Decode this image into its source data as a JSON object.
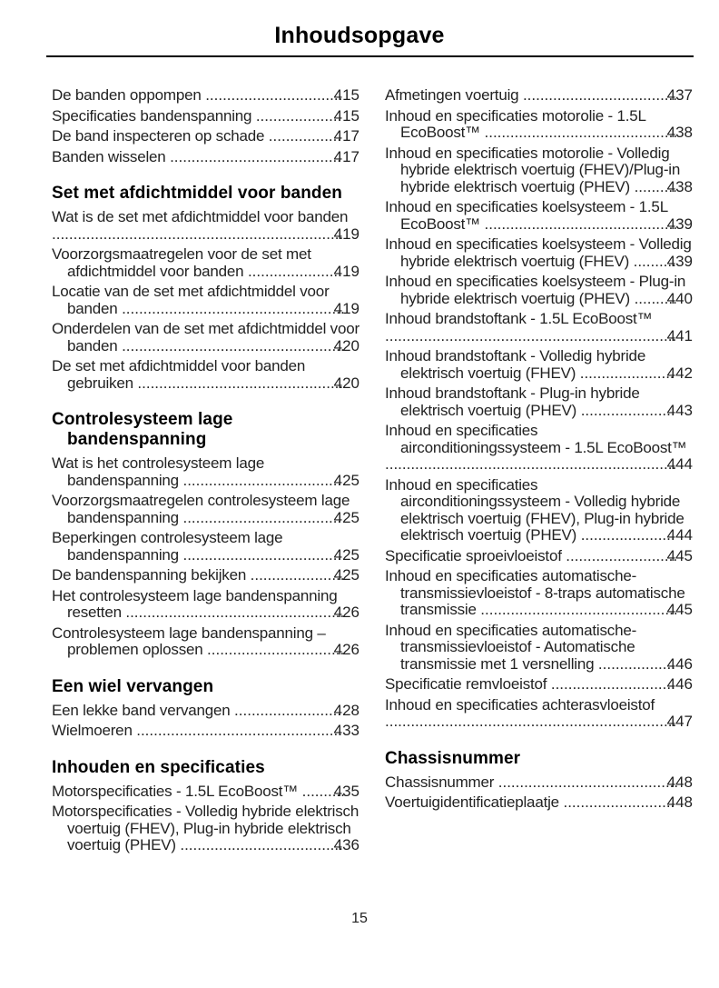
{
  "header": {
    "title": "Inhoudsopgave"
  },
  "footer": {
    "page_number": "15"
  },
  "colors": {
    "background": "#ffffff",
    "text": "#222222",
    "heading": "#000000",
    "rule": "#000000"
  },
  "columns": [
    {
      "blocks": [
        {
          "heading": null,
          "items": [
            {
              "label": "De banden oppompen",
              "page": "415"
            },
            {
              "label": "Specificaties bandenspanning",
              "page": "415"
            },
            {
              "label": "De band inspecteren op schade",
              "page": "417"
            },
            {
              "label": "Banden wisselen",
              "page": "417"
            }
          ]
        },
        {
          "heading": "Set met afdichtmiddel voor banden",
          "items": [
            {
              "label": "Wat is de set met afdichtmiddel voor banden",
              "page": "419"
            },
            {
              "label": "Voorzorgsmaatregelen voor de set met afdichtmiddel voor banden",
              "page": "419"
            },
            {
              "label": "Locatie van de set met afdichtmiddel voor banden",
              "page": "419"
            },
            {
              "label": "Onderdelen van de set met afdichtmiddel voor banden",
              "page": "420"
            },
            {
              "label": "De set met afdichtmiddel voor banden gebruiken",
              "page": "420"
            }
          ]
        },
        {
          "heading": "Controlesysteem lage bandenspanning",
          "items": [
            {
              "label": "Wat is het controlesysteem lage bandenspanning",
              "page": "425"
            },
            {
              "label": "Voorzorgsmaatregelen controlesysteem lage bandenspanning",
              "page": "425"
            },
            {
              "label": "Beperkingen controlesysteem lage bandenspanning",
              "page": "425"
            },
            {
              "label": "De bandenspanning bekijken",
              "page": "425"
            },
            {
              "label": "Het controlesysteem lage bandenspanning resetten",
              "page": "426"
            },
            {
              "label": "Controlesysteem lage bandenspanning – problemen oplossen",
              "page": "426"
            }
          ]
        },
        {
          "heading": "Een wiel vervangen",
          "items": [
            {
              "label": "Een lekke band vervangen",
              "page": "428"
            },
            {
              "label": "Wielmoeren",
              "page": "433"
            }
          ]
        },
        {
          "heading": "Inhouden en specificaties",
          "items": [
            {
              "label": "Motorspecificaties - 1.5L EcoBoost™",
              "page": "435"
            },
            {
              "label": "Motorspecificaties - Volledig hybride elektrisch voertuig (FHEV), Plug-in hybride elektrisch voertuig (PHEV)",
              "page": "436"
            }
          ]
        }
      ]
    },
    {
      "blocks": [
        {
          "heading": null,
          "items": [
            {
              "label": "Afmetingen voertuig",
              "page": "437"
            },
            {
              "label": "Inhoud en specificaties motorolie - 1.5L EcoBoost™",
              "page": "438"
            },
            {
              "label": "Inhoud en specificaties motorolie - Volledig hybride elektrisch voertuig (FHEV)/Plug-in hybride elektrisch voertuig (PHEV)",
              "page": "438"
            },
            {
              "label": "Inhoud en specificaties koelsysteem - 1.5L EcoBoost™",
              "page": "439"
            },
            {
              "label": "Inhoud en specificaties koelsysteem - Volledig hybride elektrisch voertuig (FHEV)",
              "page": "439"
            },
            {
              "label": "Inhoud en specificaties koelsysteem - Plug-in hybride elektrisch voertuig (PHEV)",
              "page": "440"
            },
            {
              "label": "Inhoud brandstoftank - 1.5L EcoBoost™",
              "page": "441"
            },
            {
              "label": "Inhoud brandstoftank - Volledig hybride elektrisch voertuig (FHEV)",
              "page": "442"
            },
            {
              "label": "Inhoud brandstoftank - Plug-in hybride elektrisch voertuig (PHEV)",
              "page": "443"
            },
            {
              "label": "Inhoud en specificaties airconditioningssysteem - 1.5L EcoBoost™",
              "page": "444"
            },
            {
              "label": "Inhoud en specificaties airconditioningssysteem - Volledig hybride elektrisch voertuig (FHEV), Plug-in hybride elektrisch voertuig (PHEV)",
              "page": "444"
            },
            {
              "label": "Specificatie sproeivloeistof",
              "page": "445"
            },
            {
              "label": "Inhoud en specificaties automatische-transmissievloeistof - 8-traps automatische transmissie",
              "page": "445"
            },
            {
              "label": "Inhoud en specificaties automatische-transmissievloeistof - Automatische transmissie met 1 versnelling",
              "page": "446"
            },
            {
              "label": "Specificatie remvloeistof",
              "page": "446"
            },
            {
              "label": "Inhoud en specificaties achterasvloeistof",
              "page": "447"
            }
          ]
        },
        {
          "heading": "Chassisnummer",
          "items": [
            {
              "label": "Chassisnummer",
              "page": "448"
            },
            {
              "label": "Voertuigidentificatieplaatje",
              "page": "448"
            }
          ]
        }
      ]
    }
  ]
}
